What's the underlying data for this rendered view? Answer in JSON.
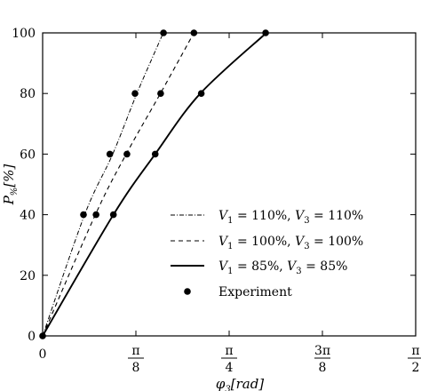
{
  "chart_data": {
    "type": "line",
    "xlabel": "φ3[rad]",
    "ylabel": "P%[%]",
    "xlim": [
      0,
      1.5708
    ],
    "ylim": [
      0,
      100
    ],
    "x_ticks": [
      {
        "value": 0,
        "label": "0"
      },
      {
        "value": 0.3927,
        "label": "π/8"
      },
      {
        "value": 0.7854,
        "label": "π/4"
      },
      {
        "value": 1.1781,
        "label": "3π/8"
      },
      {
        "value": 1.5708,
        "label": "π/2"
      }
    ],
    "y_ticks": [
      0,
      20,
      40,
      60,
      80,
      100
    ],
    "series": [
      {
        "name": "V1 = 110%, V3 = 110%",
        "style": "dash-dot",
        "x": [
          0,
          0.177,
          0.295,
          0.397,
          0.508
        ],
        "y": [
          0,
          40,
          60,
          80,
          100
        ]
      },
      {
        "name": "V1 = 100%, V3 = 100%",
        "style": "dashed",
        "x": [
          0,
          0.222,
          0.352,
          0.496,
          0.637
        ],
        "y": [
          0,
          40,
          60,
          80,
          100
        ]
      },
      {
        "name": "V1 = 85%, V3 = 85%",
        "style": "solid",
        "x": [
          0,
          0.298,
          0.474,
          0.664,
          0.942
        ],
        "y": [
          0,
          40,
          60,
          80,
          100
        ]
      }
    ],
    "experiment": {
      "name": "Experiment",
      "x": [
        0,
        0.172,
        0.225,
        0.283,
        0.298,
        0.355,
        0.389,
        0.474,
        0.497,
        0.509,
        0.668,
        0.637,
        0.939
      ],
      "y": [
        0,
        40,
        40,
        60,
        40,
        60,
        80,
        60,
        80,
        100,
        80,
        100,
        100
      ]
    },
    "legend": {
      "placement": "bottom-right",
      "entries": [
        {
          "v1": "110%",
          "v3": "110%"
        },
        {
          "v1": "100%",
          "v3": "100%"
        },
        {
          "v1": "85%",
          "v3": "85%"
        }
      ],
      "experiment_label": "Experiment"
    }
  }
}
